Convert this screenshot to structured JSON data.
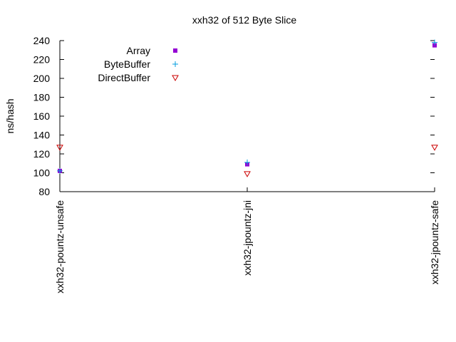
{
  "chart_data": {
    "type": "scatter",
    "title": "xxh32 of 512 Byte Slice",
    "xlabel": "",
    "ylabel": "ns/hash",
    "ylim": [
      80,
      240
    ],
    "yticks": [
      80,
      100,
      120,
      140,
      160,
      180,
      200,
      220,
      240
    ],
    "categories": [
      "xxh32-pountz-unsafe",
      "xxh32-jpountz-jni",
      "xxh32-jpountz-safe"
    ],
    "grid": false,
    "legend_position": "top-left",
    "series": [
      {
        "name": "Array",
        "marker": "filled-square",
        "color": "#9400d3",
        "values": [
          102,
          109,
          235
        ]
      },
      {
        "name": "ByteBuffer",
        "marker": "plus",
        "color": "#009edf",
        "values": [
          102,
          111,
          238
        ]
      },
      {
        "name": "DirectBuffer",
        "marker": "open-triangle-down",
        "color": "#cc0000",
        "values": [
          127,
          99,
          127
        ]
      }
    ]
  }
}
